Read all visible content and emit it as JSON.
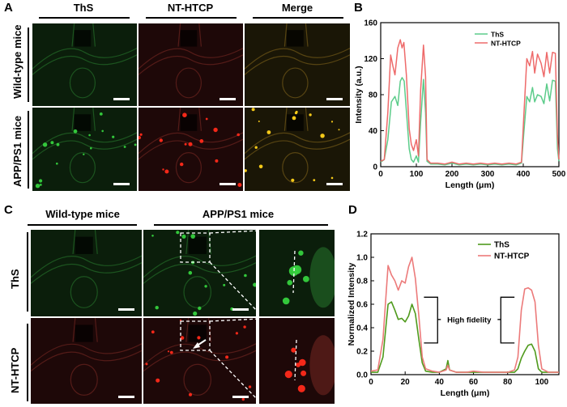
{
  "panels": {
    "A": {
      "label": "A",
      "columns": [
        "ThS",
        "NT-HTCP",
        "Merge"
      ],
      "rows": [
        "Wild-type mice",
        "APP/PS1 mice"
      ]
    },
    "B": {
      "label": "B"
    },
    "C": {
      "label": "C",
      "column_groups": [
        "Wild-type mice",
        "APP/PS1 mice"
      ],
      "rows": [
        "ThS",
        "NT-HTCP"
      ]
    },
    "D": {
      "label": "D",
      "annotation": "High fidelity"
    }
  },
  "colors": {
    "ths_b": "#5ccc8a",
    "nthtcp_b": "#ee6a6a",
    "ths_d": "#4f9a1c",
    "nthtcp_d": "#ec7a7a",
    "green_signal": "#36d13e",
    "red_signal": "#ff2a1a",
    "merge_signal": "#ffd21a"
  },
  "chart_data": [
    {
      "panel": "B",
      "type": "line",
      "xlabel": "Length (μm)",
      "ylabel": "Intensity (a.u.)",
      "xlim": [
        0,
        500
      ],
      "ylim": [
        0,
        160
      ],
      "xticks": [
        0,
        100,
        200,
        300,
        400,
        500
      ],
      "yticks": [
        0,
        40,
        80,
        120,
        160
      ],
      "legend_position": "top-right",
      "series": [
        {
          "name": "ThS",
          "points": [
            [
              0,
              5
            ],
            [
              10,
              8
            ],
            [
              20,
              30
            ],
            [
              30,
              72
            ],
            [
              40,
              78
            ],
            [
              48,
              68
            ],
            [
              55,
              95
            ],
            [
              60,
              99
            ],
            [
              66,
              95
            ],
            [
              72,
              62
            ],
            [
              80,
              20
            ],
            [
              86,
              8
            ],
            [
              92,
              5
            ],
            [
              100,
              12
            ],
            [
              106,
              5
            ],
            [
              112,
              50
            ],
            [
              120,
              97
            ],
            [
              126,
              60
            ],
            [
              130,
              6
            ],
            [
              140,
              3
            ],
            [
              160,
              3
            ],
            [
              180,
              2
            ],
            [
              200,
              4
            ],
            [
              220,
              2
            ],
            [
              240,
              3
            ],
            [
              260,
              2
            ],
            [
              280,
              3
            ],
            [
              300,
              2
            ],
            [
              320,
              3
            ],
            [
              340,
              2
            ],
            [
              360,
              3
            ],
            [
              380,
              2
            ],
            [
              395,
              4
            ],
            [
              402,
              40
            ],
            [
              410,
              78
            ],
            [
              418,
              72
            ],
            [
              426,
              88
            ],
            [
              432,
              72
            ],
            [
              440,
              80
            ],
            [
              450,
              78
            ],
            [
              458,
              70
            ],
            [
              466,
              92
            ],
            [
              474,
              73
            ],
            [
              482,
              96
            ],
            [
              490,
              95
            ],
            [
              496,
              20
            ],
            [
              500,
              6
            ]
          ]
        },
        {
          "name": "NT-HTCP",
          "points": [
            [
              0,
              6
            ],
            [
              10,
              8
            ],
            [
              20,
              60
            ],
            [
              28,
              124
            ],
            [
              34,
              112
            ],
            [
              40,
              102
            ],
            [
              48,
              132
            ],
            [
              55,
              141
            ],
            [
              60,
              132
            ],
            [
              65,
              138
            ],
            [
              72,
              102
            ],
            [
              80,
              42
            ],
            [
              86,
              25
            ],
            [
              92,
              18
            ],
            [
              100,
              30
            ],
            [
              106,
              12
            ],
            [
              112,
              85
            ],
            [
              120,
              135
            ],
            [
              126,
              100
            ],
            [
              130,
              8
            ],
            [
              140,
              4
            ],
            [
              160,
              4
            ],
            [
              180,
              3
            ],
            [
              200,
              5
            ],
            [
              220,
              3
            ],
            [
              240,
              4
            ],
            [
              260,
              3
            ],
            [
              280,
              4
            ],
            [
              300,
              3
            ],
            [
              320,
              4
            ],
            [
              340,
              3
            ],
            [
              360,
              4
            ],
            [
              380,
              3
            ],
            [
              395,
              5
            ],
            [
              402,
              60
            ],
            [
              410,
              120
            ],
            [
              418,
              112
            ],
            [
              426,
              128
            ],
            [
              432,
              104
            ],
            [
              440,
              125
            ],
            [
              450,
              115
            ],
            [
              458,
              100
            ],
            [
              466,
              127
            ],
            [
              474,
              104
            ],
            [
              482,
              127
            ],
            [
              490,
              126
            ],
            [
              496,
              35
            ],
            [
              500,
              8
            ]
          ]
        }
      ]
    },
    {
      "panel": "D",
      "type": "line",
      "xlabel": "Length (μm)",
      "ylabel": "Normalized Intensity",
      "xlim": [
        0,
        110
      ],
      "ylim": [
        0,
        1.2
      ],
      "xticks": [
        0,
        20,
        40,
        60,
        80,
        100
      ],
      "yticks": [
        0.0,
        0.2,
        0.4,
        0.6,
        0.8,
        1.0,
        1.2
      ],
      "legend_position": "top-right",
      "series": [
        {
          "name": "ThS",
          "points": [
            [
              0,
              0.02
            ],
            [
              4,
              0.02
            ],
            [
              7,
              0.15
            ],
            [
              10,
              0.6
            ],
            [
              12,
              0.62
            ],
            [
              14,
              0.55
            ],
            [
              16,
              0.47
            ],
            [
              18,
              0.48
            ],
            [
              20,
              0.45
            ],
            [
              22,
              0.5
            ],
            [
              24,
              0.6
            ],
            [
              26,
              0.52
            ],
            [
              28,
              0.3
            ],
            [
              30,
              0.1
            ],
            [
              32,
              0.03
            ],
            [
              36,
              0.02
            ],
            [
              40,
              0.02
            ],
            [
              44,
              0.05
            ],
            [
              45,
              0.12
            ],
            [
              46,
              0.04
            ],
            [
              50,
              0.02
            ],
            [
              56,
              0.02
            ],
            [
              60,
              0.02
            ],
            [
              66,
              0.02
            ],
            [
              70,
              0.02
            ],
            [
              76,
              0.02
            ],
            [
              80,
              0.02
            ],
            [
              84,
              0.02
            ],
            [
              86,
              0.05
            ],
            [
              88,
              0.14
            ],
            [
              90,
              0.2
            ],
            [
              92,
              0.25
            ],
            [
              94,
              0.26
            ],
            [
              96,
              0.2
            ],
            [
              98,
              0.05
            ],
            [
              100,
              0.02
            ],
            [
              104,
              0.02
            ],
            [
              110,
              0.02
            ]
          ]
        },
        {
          "name": "NT-HTCP",
          "points": [
            [
              0,
              0.03
            ],
            [
              4,
              0.04
            ],
            [
              7,
              0.3
            ],
            [
              10,
              0.93
            ],
            [
              12,
              0.85
            ],
            [
              14,
              0.8
            ],
            [
              16,
              0.72
            ],
            [
              18,
              0.8
            ],
            [
              20,
              0.78
            ],
            [
              22,
              0.92
            ],
            [
              24,
              1.0
            ],
            [
              26,
              0.82
            ],
            [
              28,
              0.5
            ],
            [
              30,
              0.15
            ],
            [
              32,
              0.05
            ],
            [
              36,
              0.03
            ],
            [
              40,
              0.02
            ],
            [
              44,
              0.04
            ],
            [
              45,
              0.08
            ],
            [
              46,
              0.04
            ],
            [
              50,
              0.02
            ],
            [
              56,
              0.02
            ],
            [
              60,
              0.03
            ],
            [
              66,
              0.02
            ],
            [
              70,
              0.02
            ],
            [
              76,
              0.02
            ],
            [
              80,
              0.02
            ],
            [
              84,
              0.04
            ],
            [
              86,
              0.15
            ],
            [
              88,
              0.55
            ],
            [
              90,
              0.73
            ],
            [
              92,
              0.74
            ],
            [
              94,
              0.72
            ],
            [
              96,
              0.62
            ],
            [
              98,
              0.25
            ],
            [
              100,
              0.05
            ],
            [
              104,
              0.02
            ],
            [
              110,
              0.02
            ]
          ]
        }
      ]
    }
  ]
}
